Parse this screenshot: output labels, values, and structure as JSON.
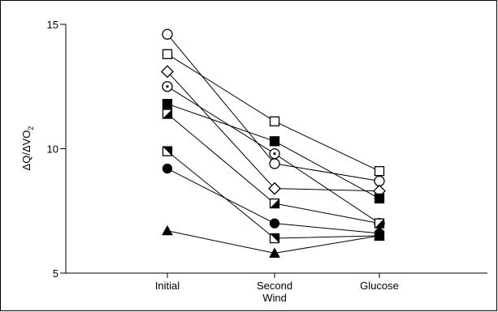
{
  "chart_data": {
    "type": "line",
    "title": "",
    "xlabel": "",
    "ylabel": "ΔQ/ΔVO₂",
    "ylabel_main": "ΔQ/ΔV",
    "ylabel_o": "O",
    "ylabel_sub": "2",
    "categories": [
      "Initial",
      "Second Wind",
      "Glucose"
    ],
    "category_lines": [
      [
        "Initial"
      ],
      [
        "Second",
        "Wind"
      ],
      [
        "Glucose"
      ]
    ],
    "y_ticks": [
      5,
      10,
      15
    ],
    "ylim": [
      5,
      15
    ],
    "grid": false,
    "legend": "none",
    "series": [
      {
        "marker": "circle-open",
        "values": [
          14.6,
          9.4,
          8.7
        ]
      },
      {
        "marker": "square-open",
        "values": [
          13.8,
          11.1,
          9.1
        ]
      },
      {
        "marker": "diamond-open",
        "values": [
          13.1,
          8.4,
          8.3
        ]
      },
      {
        "marker": "circle-dot",
        "values": [
          12.5,
          9.8,
          7.0
        ]
      },
      {
        "marker": "square-filled",
        "values": [
          11.8,
          10.3,
          8.0
        ]
      },
      {
        "marker": "square-half",
        "values": [
          11.4,
          7.8,
          7.0
        ]
      },
      {
        "marker": "square-half-alt",
        "values": [
          9.9,
          6.4,
          6.5
        ]
      },
      {
        "marker": "circle-filled",
        "values": [
          9.2,
          7.0,
          6.6
        ]
      },
      {
        "marker": "triangle-filled",
        "values": [
          6.7,
          5.8,
          6.5
        ]
      }
    ]
  }
}
